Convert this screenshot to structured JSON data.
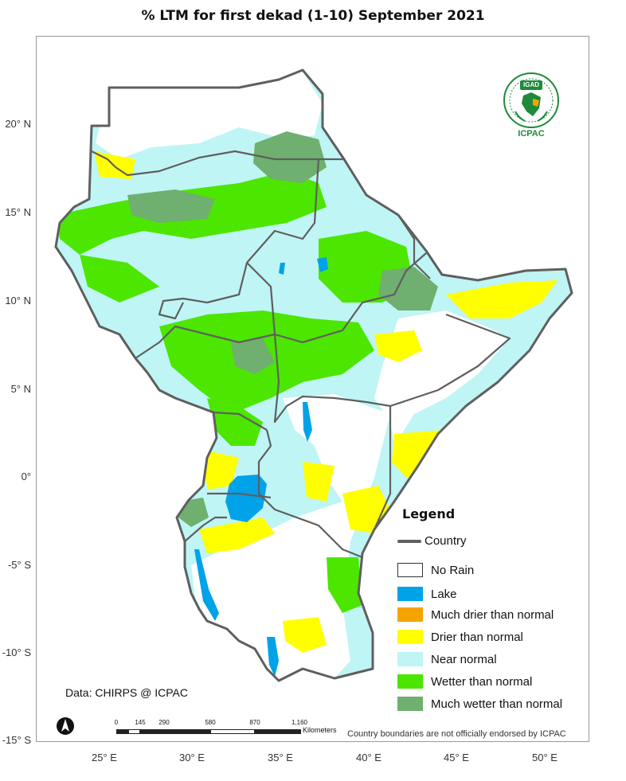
{
  "title": "% LTM  for   first dekad (1-10) September  2021",
  "latitude_labels": [
    "20° N",
    "15° N",
    "10° N",
    "5° N",
    "0°",
    "-5° S",
    "-10° S",
    "-15° S"
  ],
  "longitude_labels": [
    "25° E",
    "30° E",
    "35° E",
    "40° E",
    "45° E",
    "50° E"
  ],
  "legend": {
    "title": "Legend",
    "country_label": "Country",
    "items": [
      {
        "label": "No Rain",
        "color": "#ffffff"
      },
      {
        "label": "Lake",
        "color": "#00a2e8"
      },
      {
        "label": "Much drier than normal",
        "color": "#f5a300"
      },
      {
        "label": "Drier than normal",
        "color": "#ffff00"
      },
      {
        "label": "Near normal",
        "color": "#bff5f5"
      },
      {
        "label": "Wetter than normal",
        "color": "#4ce600"
      },
      {
        "label": "Much wetter than normal",
        "color": "#6faf6f"
      }
    ]
  },
  "credit": "Data: CHIRPS @ ICPAC",
  "disclaimer": "Country boundaries are not officially endorsed by ICPAC",
  "scale_bar": {
    "ticks": [
      "0",
      "145",
      "290",
      "580",
      "870",
      "1,160"
    ],
    "unit": "Kilometers"
  },
  "logo": {
    "badge": "IGAD",
    "name": "ICPAC"
  },
  "colors": {
    "border": "#5f5f5f",
    "near_normal": "#bff5f5",
    "wetter": "#4ce600",
    "much_wetter": "#6faf6f",
    "drier": "#ffff00",
    "lake": "#00a2e8"
  }
}
